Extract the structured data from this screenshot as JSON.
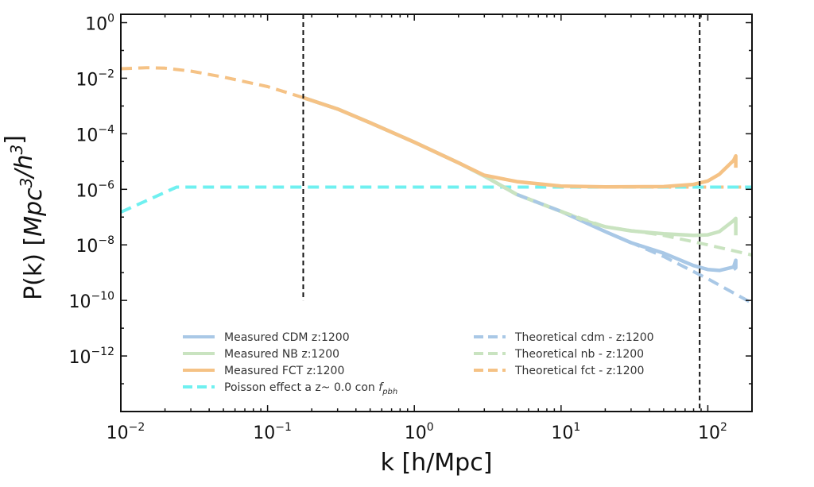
{
  "chart_data": {
    "type": "line",
    "xlabel": "k [h/Mpc]",
    "ylabel": "P(k) [Mpc³/h³]",
    "x_scale": "log",
    "y_scale": "log",
    "xlim": [
      0.01,
      200
    ],
    "ylim": [
      1e-14,
      2
    ],
    "grid": false,
    "legend_position": "lower-center",
    "x_ticks": [
      {
        "value": 0.01,
        "base": "10",
        "exp": "−2"
      },
      {
        "value": 0.1,
        "base": "10",
        "exp": "−1"
      },
      {
        "value": 1,
        "base": "10",
        "exp": "0"
      },
      {
        "value": 10,
        "base": "10",
        "exp": "1"
      },
      {
        "value": 100,
        "base": "10",
        "exp": "2"
      }
    ],
    "y_ticks": [
      {
        "value": 1,
        "base": "10",
        "exp": "0"
      },
      {
        "value": 0.01,
        "base": "10",
        "exp": "−2"
      },
      {
        "value": 0.0001,
        "base": "10",
        "exp": "−4"
      },
      {
        "value": 1e-06,
        "base": "10",
        "exp": "−6"
      },
      {
        "value": 1e-08,
        "base": "10",
        "exp": "−8"
      },
      {
        "value": 1e-10,
        "base": "10",
        "exp": "−10"
      },
      {
        "value": 1e-12,
        "base": "10",
        "exp": "−12"
      }
    ],
    "vertical_lines": [
      {
        "x": 0.175,
        "y_range": [
          1e-10,
          2
        ]
      },
      {
        "x": 88,
        "y_range": [
          1e-14,
          2
        ]
      }
    ],
    "series": [
      {
        "name": "Theoretical fct - z:1200",
        "color": "#f5c285",
        "dash": "dashed",
        "x": [
          0.01,
          0.015,
          0.02,
          0.03,
          0.05,
          0.1,
          0.175,
          0.3,
          0.5,
          1,
          2,
          3,
          5,
          10,
          20,
          50,
          100,
          200
        ],
        "y": [
          0.022,
          0.024,
          0.023,
          0.018,
          0.011,
          0.005,
          0.002,
          0.00078,
          0.00025,
          5e-05,
          9e-06,
          3.2e-06,
          1.9e-06,
          1.3e-06,
          1.22e-06,
          1.2e-06,
          1.2e-06,
          1.2e-06
        ]
      },
      {
        "name": "Poisson effect a z~ 0.0 con f_pbh",
        "color": "#6ff0f0",
        "dash": "dashed",
        "x": [
          0.01,
          0.024,
          0.05,
          0.1,
          1,
          10,
          100,
          200
        ],
        "y": [
          1.5e-07,
          1.2e-06,
          1.2e-06,
          1.2e-06,
          1.2e-06,
          1.2e-06,
          1.2e-06,
          1.2e-06
        ]
      },
      {
        "name": "Measured CDM z:1200",
        "color": "#a9c8e6",
        "dash": "solid",
        "x": [
          0.175,
          0.3,
          0.5,
          1,
          2,
          3,
          5,
          10,
          15,
          20,
          30,
          50,
          80,
          100,
          120,
          150,
          155,
          155,
          150
        ],
        "y": [
          0.002,
          0.00078,
          0.00025,
          5e-05,
          9e-06,
          3e-06,
          6.5e-07,
          1.6e-07,
          6e-08,
          3e-08,
          1.2e-08,
          5e-09,
          1.8e-09,
          1.3e-09,
          1.2e-09,
          1.6e-09,
          2.8e-09,
          1.5e-09,
          1.3e-09
        ]
      },
      {
        "name": "Measured NB z:1200",
        "color": "#c9e3c0",
        "dash": "solid",
        "x": [
          0.175,
          0.3,
          0.5,
          1,
          2,
          3,
          5,
          10,
          15,
          20,
          30,
          50,
          80,
          100,
          120,
          150,
          155,
          155
        ],
        "y": [
          0.002,
          0.00078,
          0.00025,
          5e-05,
          9e-06,
          3e-06,
          6.5e-07,
          1.6e-07,
          7e-08,
          4.5e-08,
          3.2e-08,
          2.5e-08,
          2.2e-08,
          2.3e-08,
          3e-08,
          7.5e-08,
          9e-08,
          2.2e-08
        ]
      },
      {
        "name": "Measured FCT z:1200",
        "color": "#f5c285",
        "dash": "solid",
        "x": [
          0.175,
          0.3,
          0.5,
          1,
          2,
          3,
          5,
          10,
          20,
          50,
          80,
          100,
          120,
          150,
          155,
          155
        ],
        "y": [
          0.002,
          0.00078,
          0.00025,
          5e-05,
          9e-06,
          3.2e-06,
          1.9e-06,
          1.3e-06,
          1.22e-06,
          1.25e-06,
          1.5e-06,
          2e-06,
          3.5e-06,
          1.1e-05,
          1.6e-05,
          6e-06
        ]
      },
      {
        "name": "Theoretical cdm - z:1200",
        "color": "#a9c8e6",
        "dash": "dashed",
        "x": [
          5,
          10,
          20,
          50,
          100,
          200
        ],
        "y": [
          6.5e-07,
          1.6e-07,
          3e-08,
          3.8e-09,
          6e-10,
          8e-11
        ]
      },
      {
        "name": "Theoretical nb - z:1200",
        "color": "#c9e3c0",
        "dash": "dashed",
        "x": [
          10,
          20,
          50,
          100,
          200
        ],
        "y": [
          1.6e-07,
          4.5e-08,
          2.2e-08,
          1e-08,
          4.3e-09
        ]
      }
    ],
    "legend": [
      {
        "label": "Measured CDM z:1200",
        "color": "#a9c8e6",
        "dash": "solid",
        "col": 0,
        "row": 0
      },
      {
        "label": "Measured NB z:1200",
        "color": "#c9e3c0",
        "dash": "solid",
        "col": 0,
        "row": 1
      },
      {
        "label": "Measured FCT z:1200",
        "color": "#f5c285",
        "dash": "solid",
        "col": 0,
        "row": 2
      },
      {
        "label": "Poisson effect a z~ 0.0 con ",
        "sublabel": "pbh",
        "italic_prefix": "f",
        "color": "#6ff0f0",
        "dash": "dashed",
        "col": 0,
        "row": 3
      },
      {
        "label": "Theoretical cdm - z:1200",
        "color": "#a9c8e6",
        "dash": "dashed",
        "col": 1,
        "row": 0
      },
      {
        "label": "Theoretical nb - z:1200",
        "color": "#c9e3c0",
        "dash": "dashed",
        "col": 1,
        "row": 1
      },
      {
        "label": "Theoretical fct - z:1200",
        "color": "#f5c285",
        "dash": "dashed",
        "col": 1,
        "row": 2
      }
    ]
  }
}
